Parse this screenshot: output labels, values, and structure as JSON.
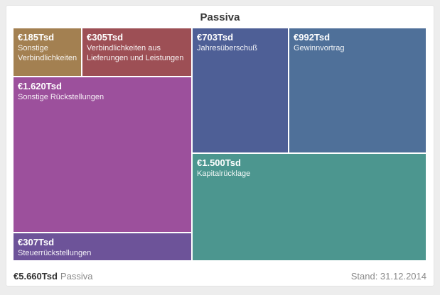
{
  "title": "Passiva",
  "footer": {
    "total_value": "€5.660Tsd",
    "total_label": "Passiva",
    "date_label": "Stand: 31.12.2014"
  },
  "chart_data": {
    "type": "treemap",
    "title": "Passiva",
    "unit": "Tsd €",
    "total_value": 5660,
    "total_label": "€5.660Tsd Passiva",
    "as_of_date": "31.12.2014",
    "legend": "none",
    "cells": [
      {
        "value_label": "€185Tsd",
        "value": 185,
        "label": "Sonstige Verbindlichkeiten",
        "color": "#a38051"
      },
      {
        "value_label": "€305Tsd",
        "value": 305,
        "label": "Verbindlichkeiten aus Lieferungen und Leistungen",
        "color": "#9d4f55"
      },
      {
        "value_label": "€1.620Tsd",
        "value": 1620,
        "label": "Sonstige Rückstellungen",
        "color": "#9c509c"
      },
      {
        "value_label": "€307Tsd",
        "value": 307,
        "label": "Steuerrückstellungen",
        "color": "#6d5399"
      },
      {
        "value_label": "€703Tsd",
        "value": 703,
        "label": "Jahresüberschuß",
        "color": "#4e5f96"
      },
      {
        "value_label": "€992Tsd",
        "value": 992,
        "label": "Gewinnvortrag",
        "color": "#4f7099"
      },
      {
        "value_label": "€1.500Tsd",
        "value": 1500,
        "label": "Kapitalrücklage",
        "color": "#4c968f"
      }
    ]
  }
}
